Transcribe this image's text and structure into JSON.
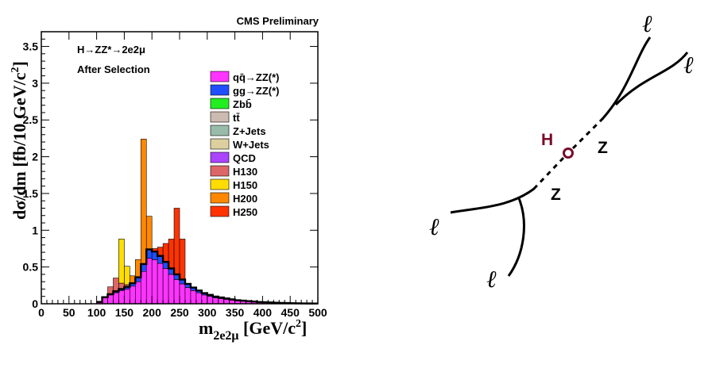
{
  "chart_data": {
    "type": "stacked-histogram",
    "header": "CMS Preliminary",
    "process": "H→ZZ*→2e2μ",
    "selection": "After Selection",
    "xlabel": "m2e2μ [GeV/c²]",
    "xlabel_main": "m",
    "xlabel_sub": "2e2μ",
    "xlabel_unit": " [GeV/c",
    "xlabel_pow": "2",
    "xlabel_close": "]",
    "ylabel": "dσ/dm [fb/10 GeV/c²]",
    "ylabel_main": "dσ/dm [fb/10 GeV/c",
    "ylabel_pow": "2",
    "ylabel_close": "]",
    "xlim": [
      0,
      500
    ],
    "ylim": [
      0,
      3.7
    ],
    "bin_width": 10,
    "bin_start": 100,
    "xticks": [
      0,
      50,
      100,
      150,
      200,
      250,
      300,
      350,
      400,
      450,
      500
    ],
    "yticks": [
      0,
      0.5,
      1,
      1.5,
      2,
      2.5,
      3,
      3.5
    ],
    "ytick_labels": [
      "0",
      "0.5",
      "1",
      "1.5",
      "2",
      "2.5",
      "3",
      "3.5"
    ],
    "legend": [
      {
        "key": "qq",
        "label": "qq̄→ZZ(*)",
        "color": "#ff33ff"
      },
      {
        "key": "gg",
        "label": "gg→ZZ(*)",
        "color": "#1f4fff"
      },
      {
        "key": "zbb",
        "label": "Zbb̄",
        "color": "#22ee22"
      },
      {
        "key": "tt",
        "label": "tt̄",
        "color": "#ccbbb0"
      },
      {
        "key": "zjets",
        "label": "Z+Jets",
        "color": "#99bbaa"
      },
      {
        "key": "wjets",
        "label": "W+Jets",
        "color": "#ddd0a0"
      },
      {
        "key": "qcd",
        "label": "QCD",
        "color": "#aa44ff"
      },
      {
        "key": "h130",
        "label": "H130",
        "color": "#dd6666"
      },
      {
        "key": "h150",
        "label": "H150",
        "color": "#ffdd00"
      },
      {
        "key": "h200",
        "label": "H200",
        "color": "#ff8800"
      },
      {
        "key": "h250",
        "label": "H250",
        "color": "#ff3300"
      }
    ],
    "series": {
      "qq": [
        0.02,
        0.08,
        0.12,
        0.15,
        0.18,
        0.2,
        0.24,
        0.3,
        0.44,
        0.62,
        0.6,
        0.55,
        0.48,
        0.4,
        0.33,
        0.27,
        0.22,
        0.18,
        0.15,
        0.12,
        0.1,
        0.08,
        0.07,
        0.06,
        0.05,
        0.04,
        0.035,
        0.03,
        0.025,
        0.02,
        0.018,
        0.015,
        0.012,
        0.01,
        0.008,
        0.006,
        0.005,
        0.004,
        0.003,
        0.002
      ],
      "gg": [
        0.005,
        0.01,
        0.01,
        0.02,
        0.02,
        0.03,
        0.04,
        0.06,
        0.1,
        0.12,
        0.11,
        0.1,
        0.09,
        0.08,
        0.07,
        0.06,
        0.05,
        0.04,
        0.03,
        0.025,
        0.02,
        0.018,
        0.015,
        0.012,
        0.01,
        0.008,
        0.007,
        0.006,
        0.005,
        0.004,
        0.003,
        0.003,
        0.002,
        0.002,
        0.002,
        0.001,
        0.001,
        0.001,
        0.001,
        0.001
      ],
      "h130": [
        0,
        0,
        0.1,
        0.18,
        0.08,
        0.03,
        0,
        0,
        0,
        0,
        0,
        0,
        0,
        0,
        0,
        0,
        0,
        0,
        0,
        0,
        0,
        0,
        0,
        0,
        0,
        0,
        0,
        0,
        0,
        0,
        0,
        0,
        0,
        0,
        0,
        0,
        0,
        0,
        0,
        0
      ],
      "h150": [
        0,
        0,
        0,
        0,
        0.6,
        0.25,
        0,
        0,
        0,
        0,
        0,
        0,
        0,
        0,
        0,
        0,
        0,
        0,
        0,
        0,
        0,
        0,
        0,
        0,
        0,
        0,
        0,
        0,
        0,
        0,
        0,
        0,
        0,
        0,
        0,
        0,
        0,
        0,
        0,
        0
      ],
      "h200": [
        0,
        0,
        0,
        0,
        0,
        0,
        0.1,
        0.24,
        1.7,
        0.45,
        0,
        0,
        0,
        0,
        0,
        0,
        0,
        0,
        0,
        0,
        0,
        0,
        0,
        0,
        0,
        0,
        0,
        0,
        0,
        0,
        0,
        0,
        0,
        0,
        0,
        0,
        0,
        0,
        0,
        0
      ],
      "h250": [
        0,
        0,
        0,
        0,
        0,
        0,
        0,
        0,
        0,
        0,
        0.04,
        0.12,
        0.25,
        0.4,
        0.9,
        0.55,
        0,
        0,
        0,
        0,
        0,
        0,
        0,
        0,
        0,
        0,
        0,
        0,
        0,
        0,
        0,
        0,
        0,
        0,
        0,
        0,
        0,
        0,
        0,
        0
      ]
    }
  },
  "diagram": {
    "higgs_label": "H",
    "z_labels": [
      "Z",
      "Z"
    ],
    "lepton_labels": [
      "ℓ",
      "ℓ",
      "ℓ",
      "ℓ"
    ],
    "higgs_color": "#7a0a2a"
  }
}
